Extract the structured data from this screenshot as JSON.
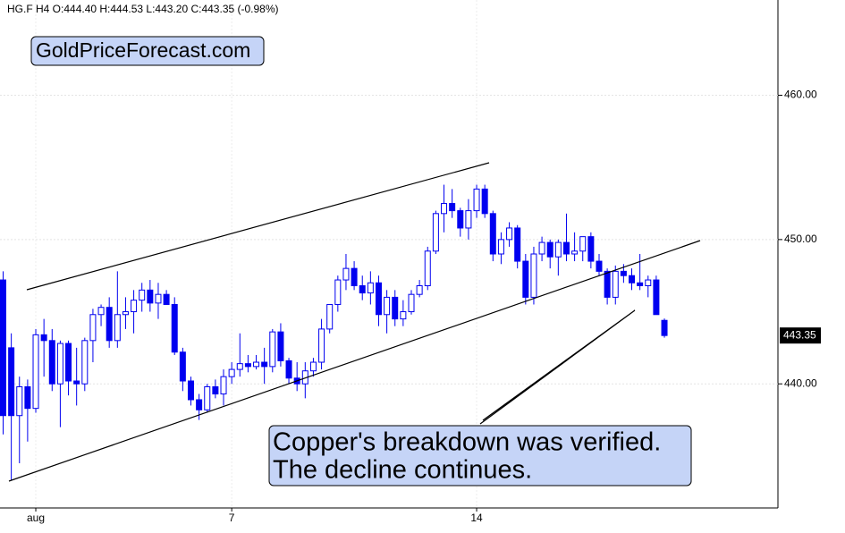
{
  "chart_data": {
    "type": "candlestick",
    "title": "HG.F  H4  O:444.40  H:444.53  L:443.20  C:443.35  (-0.98%)",
    "watermark": "GoldPriceForecast.com",
    "annotation": [
      "Copper's breakdown was verified.",
      "The decline continues."
    ],
    "last_price": {
      "value": 443.35,
      "label": "443.35"
    },
    "categories": [
      null,
      null,
      null,
      null,
      "aug",
      null,
      null,
      null,
      null,
      null,
      null,
      null,
      null,
      null,
      null,
      null,
      null,
      null,
      null,
      null,
      null,
      null,
      null,
      null,
      null,
      null,
      null,
      null,
      "7",
      null,
      null,
      null,
      null,
      null,
      null,
      null,
      null,
      null,
      null,
      null,
      null,
      null,
      null,
      null,
      null,
      null,
      null,
      null,
      null,
      null,
      null,
      null,
      null,
      null,
      null,
      null,
      null,
      null,
      "14",
      null,
      null,
      null,
      null,
      null,
      null,
      null,
      null,
      null,
      null,
      null,
      null,
      null,
      null,
      null,
      null,
      null,
      null,
      null,
      null,
      null,
      null,
      null
    ],
    "open": [
      447.2,
      442.5,
      437.8,
      439.8,
      438.3,
      443.4,
      443.0,
      440.0,
      442.8,
      440.2,
      440.0,
      443.0,
      444.8,
      445.3,
      443.0,
      444.8,
      445.0,
      445.8,
      446.5,
      445.6,
      446.2,
      445.5,
      442.2,
      440.2,
      438.9,
      438.2,
      439.8,
      439.3,
      440.5,
      441.0,
      441.4,
      441.2,
      441.5,
      441.2,
      443.6,
      441.6,
      440.4,
      440.0,
      440.9,
      441.5,
      443.8,
      445.5,
      447.2,
      448.0,
      446.8,
      446.3,
      447.0,
      444.8,
      446.0,
      444.5,
      445.0,
      446.2,
      446.8,
      449.2,
      451.8,
      452.5,
      452.0,
      450.8,
      452.0,
      453.5,
      451.8,
      449.0,
      450.0,
      450.8,
      448.5,
      446.0,
      449.0,
      449.8,
      448.8,
      449.8,
      449.0,
      449.2,
      450.2,
      448.5,
      447.8,
      446.0,
      447.8,
      447.5,
      447.0,
      446.8,
      447.2,
      444.4
    ],
    "high": [
      447.8,
      443.5,
      440.5,
      440.3,
      443.8,
      444.5,
      443.8,
      443.0,
      443.0,
      442.5,
      443.2,
      445.2,
      445.5,
      446.0,
      447.8,
      446.0,
      446.5,
      447.0,
      447.2,
      447.0,
      446.5,
      446.0,
      442.5,
      440.5,
      439.3,
      440.0,
      440.3,
      441.0,
      441.5,
      443.5,
      442.0,
      442.0,
      442.5,
      443.8,
      444.2,
      441.8,
      441.5,
      441.5,
      441.8,
      444.5,
      445.5,
      447.5,
      449.0,
      448.5,
      447.5,
      447.8,
      447.5,
      446.5,
      446.5,
      445.8,
      446.5,
      447.2,
      449.5,
      452.0,
      453.8,
      453.5,
      452.2,
      452.8,
      453.8,
      453.8,
      452.0,
      450.5,
      451.2,
      451.0,
      449.0,
      449.5,
      450.2,
      450.0,
      450.0,
      451.8,
      450.5,
      450.2,
      450.5,
      449.0,
      448.0,
      448.2,
      448.3,
      448.0,
      449.0,
      447.5,
      447.5,
      444.53
    ],
    "low": [
      436.5,
      433.3,
      434.5,
      436.0,
      438.0,
      440.5,
      439.5,
      437.0,
      439.2,
      438.5,
      439.5,
      441.5,
      444.0,
      442.5,
      442.5,
      443.8,
      443.5,
      445.0,
      445.0,
      444.5,
      445.5,
      442.0,
      439.5,
      438.5,
      437.5,
      438.0,
      439.0,
      438.5,
      440.0,
      440.5,
      440.8,
      441.0,
      440.0,
      440.8,
      441.2,
      440.0,
      439.5,
      439.0,
      440.5,
      441.0,
      443.5,
      445.0,
      446.5,
      446.5,
      445.8,
      445.5,
      444.0,
      443.5,
      444.0,
      444.0,
      444.8,
      446.0,
      446.5,
      449.0,
      450.5,
      451.5,
      450.2,
      450.0,
      451.5,
      451.5,
      448.5,
      448.3,
      449.5,
      448.0,
      445.5,
      445.5,
      448.5,
      448.0,
      447.5,
      448.5,
      448.5,
      448.5,
      448.0,
      447.5,
      445.5,
      445.5,
      447.0,
      446.5,
      446.5,
      446.0,
      444.8,
      443.2
    ],
    "close": [
      437.8,
      437.8,
      439.8,
      438.3,
      443.4,
      443.0,
      440.0,
      442.8,
      440.2,
      440.0,
      443.0,
      444.8,
      445.3,
      443.0,
      444.8,
      445.0,
      445.8,
      446.5,
      445.6,
      446.2,
      445.5,
      442.2,
      440.2,
      438.9,
      438.2,
      439.8,
      439.3,
      440.5,
      441.0,
      441.4,
      441.2,
      441.5,
      441.2,
      443.6,
      441.6,
      440.4,
      440.0,
      440.9,
      441.5,
      443.8,
      445.5,
      447.2,
      448.0,
      446.8,
      446.3,
      447.0,
      444.8,
      446.0,
      444.5,
      445.0,
      446.2,
      446.8,
      449.2,
      451.8,
      452.5,
      452.0,
      450.8,
      452.0,
      453.5,
      451.8,
      449.0,
      450.0,
      450.8,
      448.5,
      446.0,
      449.0,
      449.8,
      448.8,
      449.8,
      449.0,
      449.2,
      450.2,
      448.5,
      447.8,
      446.0,
      447.8,
      447.5,
      447.0,
      446.8,
      447.2,
      444.8,
      443.35
    ],
    "up_color": "#ffffff",
    "down_color": "#0000f0",
    "edge_color": "#0000f0",
    "ylim": [
      431.4,
      466.6
    ],
    "yticks": [
      {
        "value": 440,
        "label": "440.00"
      },
      {
        "value": 450,
        "label": "450.00"
      },
      {
        "value": 460,
        "label": "460.00"
      }
    ],
    "grid": true
  }
}
